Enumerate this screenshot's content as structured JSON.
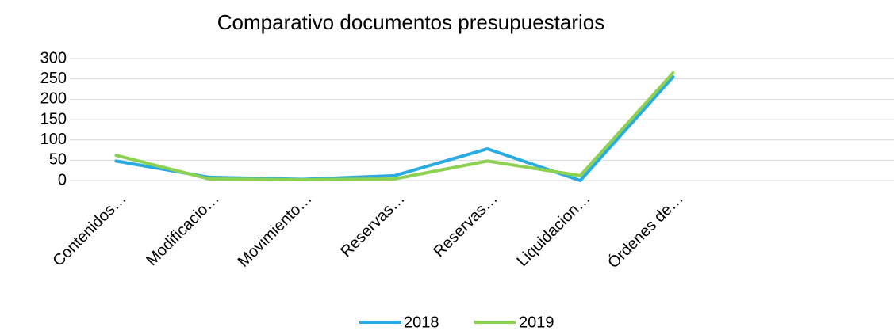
{
  "chart_data": {
    "type": "line",
    "title": "Comparativo documentos presupuestarios",
    "categories": [
      "Contenidos…",
      "Modificacio…",
      "Movimiento…",
      "Reservas…",
      "Reservas…",
      "Liquidacion…",
      "Órdenes de…",
      null,
      null
    ],
    "series": [
      {
        "name": "2018",
        "color": "#29abe2",
        "values": [
          48,
          8,
          3,
          12,
          78,
          0,
          255,
          null,
          null
        ]
      },
      {
        "name": "2019",
        "color": "#8cd14f",
        "values": [
          62,
          4,
          2,
          4,
          48,
          12,
          265,
          null,
          null
        ]
      }
    ],
    "ylim": [
      0,
      300
    ],
    "yticks": [
      0,
      50,
      100,
      150,
      200,
      250,
      300
    ],
    "grid": true,
    "legend": "bottom"
  }
}
